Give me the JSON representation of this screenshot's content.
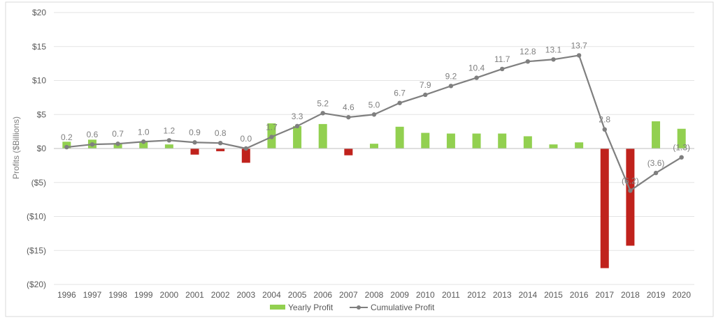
{
  "chart_data": {
    "type": "bar",
    "title": "",
    "xlabel": "",
    "ylabel": "Profits ($Billions)",
    "ylim": [
      -20,
      20
    ],
    "y_ticks": [
      20,
      15,
      10,
      5,
      0,
      -5,
      -10,
      -15,
      -20
    ],
    "y_tick_labels": [
      "$20",
      "$15",
      "$10",
      "$5",
      "$0",
      "($5)",
      "($10)",
      "($15)",
      "($20)"
    ],
    "grid": true,
    "legend_position": "bottom",
    "categories": [
      "1996",
      "1997",
      "1998",
      "1999",
      "2000",
      "2001",
      "2002",
      "2003",
      "2004",
      "2005",
      "2006",
      "2007",
      "2008",
      "2009",
      "2010",
      "2011",
      "2012",
      "2013",
      "2014",
      "2015",
      "2016",
      "2017",
      "2018",
      "2019",
      "2020"
    ],
    "series": [
      {
        "name": "Yearly Profit",
        "kind": "bar",
        "color_positive": "#92d050",
        "color_negative": "#c0221c",
        "values": [
          1.0,
          1.3,
          0.8,
          1.0,
          0.6,
          -0.9,
          -0.4,
          -2.1,
          3.7,
          3.3,
          3.6,
          -1.0,
          0.7,
          3.2,
          2.3,
          2.2,
          2.2,
          2.2,
          1.8,
          0.6,
          0.9,
          -17.6,
          -14.3,
          4.0,
          2.9
        ]
      },
      {
        "name": "Cumulative Profit",
        "kind": "line",
        "color": "#7f7f7f",
        "values": [
          0.2,
          0.6,
          0.7,
          1.0,
          1.2,
          0.9,
          0.8,
          0.0,
          1.7,
          3.3,
          5.2,
          4.6,
          5.0,
          6.7,
          7.9,
          9.2,
          10.4,
          11.7,
          12.8,
          13.1,
          13.7,
          2.8,
          -6.2,
          -3.6,
          -1.3
        ],
        "labels": [
          "0.2",
          "0.6",
          "0.7",
          "1.0",
          "1.2",
          "0.9",
          "0.8",
          "0.0",
          "1.7",
          "3.3",
          "5.2",
          "4.6",
          "5.0",
          "6.7",
          "7.9",
          "9.2",
          "10.4",
          "11.7",
          "12.8",
          "13.1",
          "13.7",
          "2.8",
          "(6.2)",
          "(3.6)",
          "(1.3)"
        ]
      }
    ]
  }
}
